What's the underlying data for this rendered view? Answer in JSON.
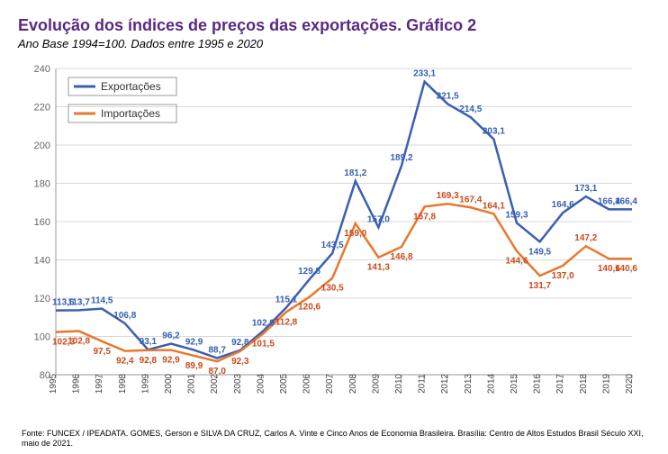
{
  "title": "Evolução dos índices de preços das exportações. Gráfico 2",
  "subtitle": "Ano Base 1994=100. Dados entre 1995 e 2020",
  "chart": {
    "type": "line",
    "background_color": "#ffffff",
    "grid_color": "#d9d9d9",
    "axis_color": "#999999",
    "title_color": "#5a2883",
    "ylim": [
      80,
      240
    ],
    "ytick_step": 20,
    "yticks": [
      80,
      100,
      120,
      140,
      160,
      180,
      200,
      220,
      240
    ],
    "categories": [
      "1995",
      "1996",
      "1997",
      "1998",
      "1999",
      "2000",
      "2001",
      "2002",
      "2003",
      "2004",
      "2005",
      "2006",
      "2007",
      "2008",
      "2009",
      "2010",
      "2011",
      "2012",
      "2013",
      "2014",
      "2015",
      "2016",
      "2017",
      "2018",
      "2019",
      "2020"
    ],
    "series": [
      {
        "name": "Exportações",
        "color": "#3b5fb3",
        "label_color": "#355fb3",
        "values": [
          113.6,
          113.7,
          114.5,
          106.8,
          93.1,
          96.2,
          92.9,
          88.7,
          92.8,
          102.9,
          115.1,
          129.8,
          143.5,
          181.2,
          157.0,
          189.2,
          233.1,
          221.5,
          214.5,
          203.1,
          159.3,
          149.5,
          164.6,
          173.1,
          166.4,
          166.4
        ],
        "label_positions": [
          "above",
          "above",
          "above",
          "above",
          "above",
          "above",
          "above",
          "above",
          "above",
          "above",
          "above",
          "above",
          "above",
          "above",
          "above",
          "above",
          "above",
          "above",
          "above",
          "above",
          "above",
          "below",
          "above",
          "above",
          "above",
          "above"
        ]
      },
      {
        "name": "Importações",
        "color": "#e8782e",
        "label_color": "#cc4a1a",
        "values": [
          102.3,
          102.8,
          97.5,
          92.4,
          92.8,
          92.9,
          89.9,
          87.0,
          92.3,
          101.5,
          112.8,
          120.6,
          130.5,
          159.0,
          141.3,
          146.8,
          167.8,
          169.3,
          167.4,
          164.1,
          144.6,
          131.7,
          137.0,
          147.2,
          140.6,
          140.6
        ],
        "label_positions": [
          "below",
          "below",
          "below",
          "below",
          "below",
          "below",
          "below",
          "below",
          "below",
          "below",
          "below",
          "below",
          "below",
          "below",
          "below",
          "below",
          "below",
          "above",
          "above",
          "above",
          "below",
          "below",
          "below",
          "above",
          "below",
          "below"
        ]
      }
    ],
    "legend": {
      "position": "top-left",
      "items": [
        "Exportações",
        "Importações"
      ]
    }
  },
  "source": "Fonte: FUNCEX / IPEADATA. GOMES, Gerson e SILVA DA CRUZ, Carlos A. Vinte e Cinco Anos de Economia Brasileira. Brasília:  Centro de Altos Estudos Brasil Século XXI, maio de 2021."
}
